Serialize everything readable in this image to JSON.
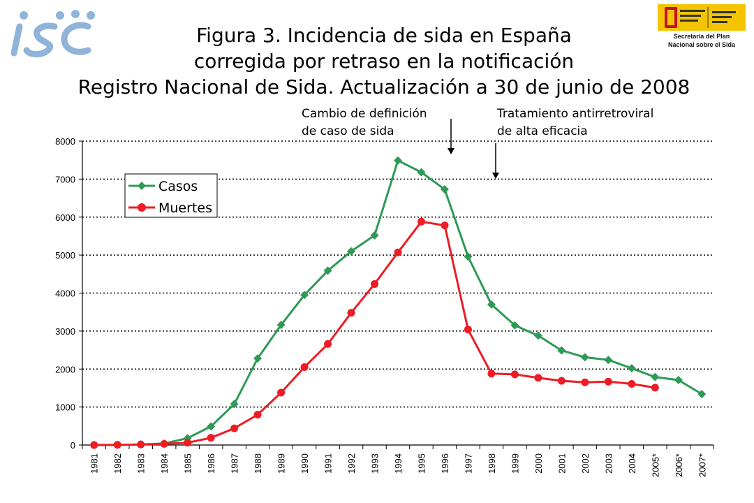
{
  "header": {
    "title_lines": [
      "Figura 3. Incidencia de sida en España",
      "corregida por retraso en la notificación",
      "Registro Nacional de Sida. Actualización a 30 de junio de 2008"
    ],
    "logo_left_icon": "isciii-logo-icon",
    "logo_right_icon": "gobierno-de-espana-logo-icon",
    "logo_right_caption_lines": [
      "Secretaría del Plan",
      "Nacional sobre el Sida"
    ]
  },
  "chart_data": {
    "type": "line",
    "title": "",
    "xlabel": "",
    "ylabel": "",
    "ylim": [
      0,
      8000
    ],
    "yticks": [
      0,
      1000,
      2000,
      3000,
      4000,
      5000,
      6000,
      7000,
      8000
    ],
    "grid": "horizontal dotted",
    "legend_position": "top-left",
    "categories": [
      "1981",
      "1982",
      "1983",
      "1984",
      "1985",
      "1986",
      "1987",
      "1988",
      "1989",
      "1990",
      "1991",
      "1992",
      "1993",
      "1994",
      "1995",
      "1996",
      "1997",
      "1998",
      "1999",
      "2000",
      "2001",
      "2002",
      "2003",
      "2004",
      "2005*",
      "2006*",
      "2007*"
    ],
    "series": [
      {
        "name": "Casos",
        "color": "#2e9a55",
        "marker": "diamond",
        "values": [
          0,
          5,
          15,
          40,
          180,
          490,
          1080,
          2280,
          3160,
          3950,
          4590,
          5100,
          5520,
          7490,
          7180,
          6730,
          4960,
          3700,
          3150,
          2880,
          2490,
          2310,
          2240,
          2020,
          1790,
          1710,
          1340
        ]
      },
      {
        "name": "Muertes",
        "color": "#ee1c24",
        "marker": "circle",
        "values": [
          0,
          5,
          15,
          30,
          60,
          190,
          440,
          800,
          1380,
          2050,
          2660,
          3480,
          4240,
          5070,
          5880,
          5780,
          3040,
          1880,
          1860,
          1770,
          1690,
          1650,
          1670,
          1610,
          1510,
          null,
          null
        ]
      }
    ],
    "annotations": [
      {
        "lines": [
          "Cambio de definición",
          "de caso de sida"
        ],
        "arrow_at": "1996-1997"
      },
      {
        "lines": [
          "Tratamiento antirretroviral",
          "de alta eficacia"
        ],
        "arrow_at": "1998"
      }
    ]
  }
}
